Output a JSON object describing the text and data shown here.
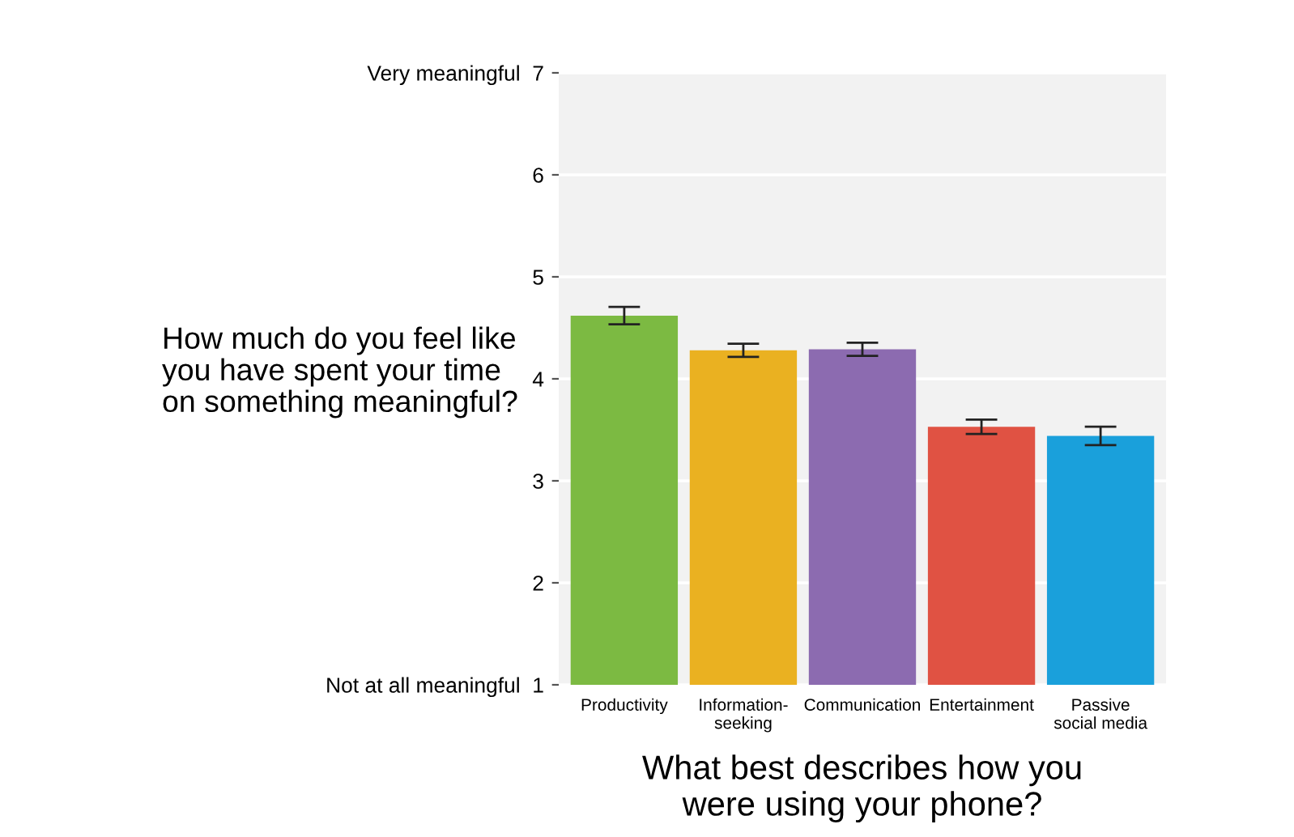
{
  "chart_data": {
    "type": "bar",
    "categories": [
      "Productivity",
      "Information-\nseeking",
      "Communication",
      "Entertainment",
      "Passive\nsocial media"
    ],
    "values": [
      4.62,
      4.28,
      4.29,
      3.53,
      3.44
    ],
    "errors": [
      0.085,
      0.065,
      0.065,
      0.07,
      0.09
    ],
    "colors": [
      "#7cba42",
      "#eab121",
      "#8c6bb0",
      "#e05243",
      "#1aa0db"
    ],
    "xlabel": "What best describes how you\nwere using your phone?",
    "ylabel": "How much do you feel like\nyou have spent your time\non something meaningful?",
    "ylim": [
      1,
      7
    ],
    "yticks": [
      {
        "value": 1,
        "label": "Not at all meaningful  1"
      },
      2,
      3,
      4,
      5,
      6,
      {
        "value": 7,
        "label": "Very meaningful  7"
      }
    ],
    "grid": "y"
  }
}
